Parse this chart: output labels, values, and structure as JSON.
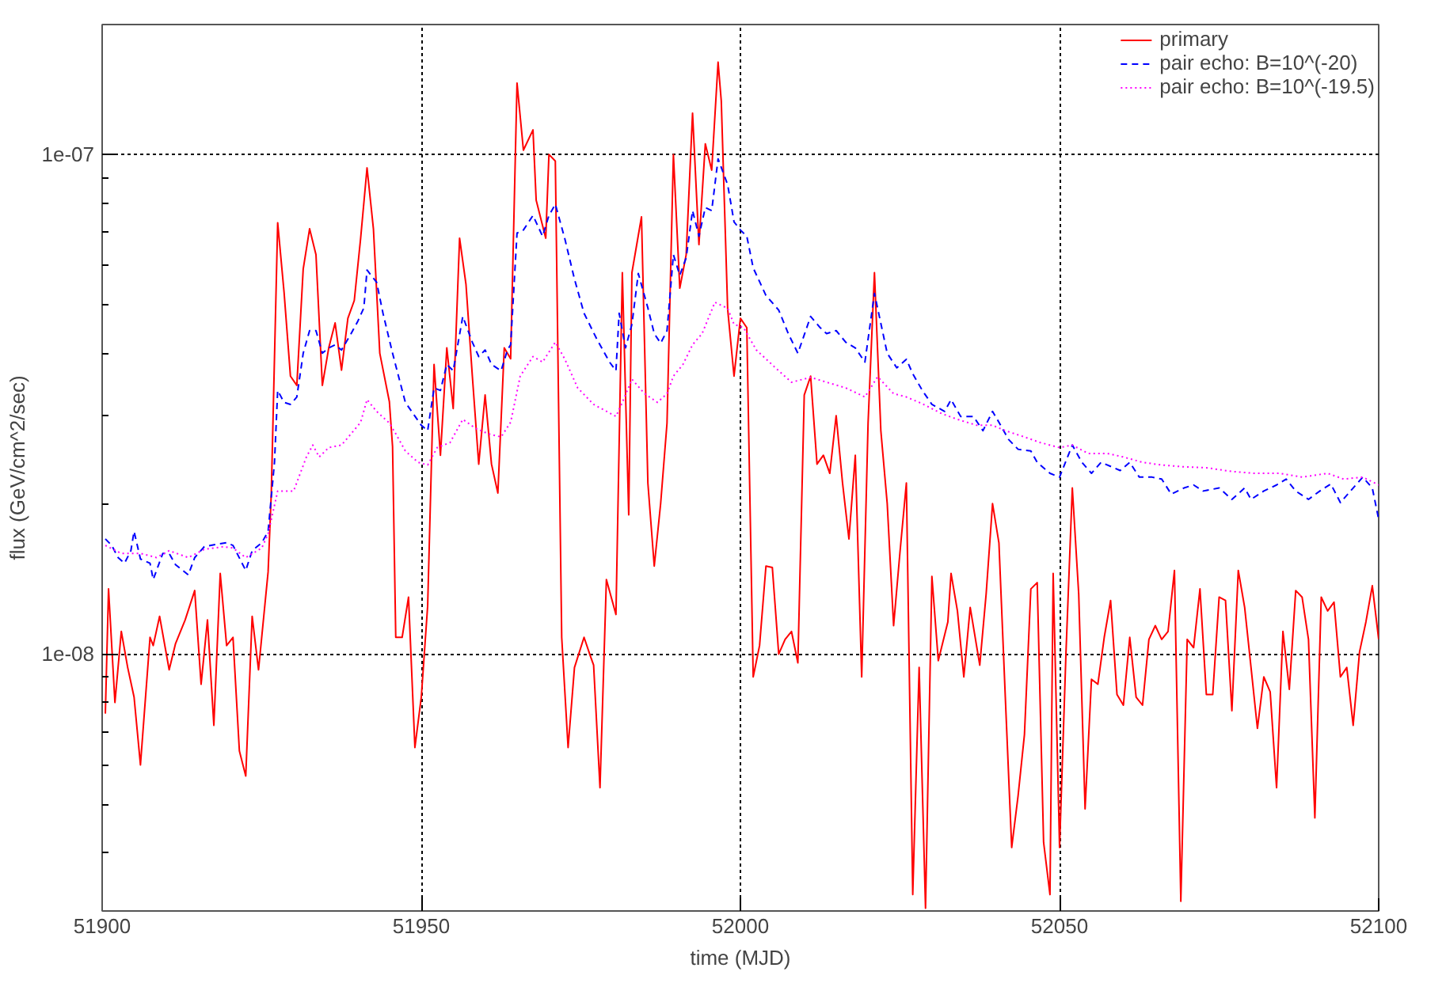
{
  "chart_data": {
    "type": "line",
    "xlabel": "time (MJD)",
    "ylabel": "flux (GeV/cm^2/sec)",
    "log": "y",
    "grid": true,
    "legend": "top right",
    "marker": "none",
    "xlim": [
      51900,
      52100
    ],
    "xticks": [
      51900,
      51950,
      52000,
      52050,
      52100
    ],
    "ylim": [
      3.06e-09,
      1.82e-07
    ],
    "yticks": [
      {
        "value": 4e-09,
        "label": null
      },
      {
        "value": 5e-09,
        "label": null
      },
      {
        "value": 6e-09,
        "label": null
      },
      {
        "value": 7e-09,
        "label": null
      },
      {
        "value": 8e-09,
        "label": null
      },
      {
        "value": 9e-09,
        "label": null
      },
      {
        "value": 1e-08,
        "label": "1e-08"
      },
      {
        "value": 2e-08,
        "label": null
      },
      {
        "value": 3e-08,
        "label": null
      },
      {
        "value": 4e-08,
        "label": null
      },
      {
        "value": 5e-08,
        "label": null
      },
      {
        "value": 6e-08,
        "label": null
      },
      {
        "value": 7e-08,
        "label": null
      },
      {
        "value": 8e-08,
        "label": null
      },
      {
        "value": 9e-08,
        "label": null
      },
      {
        "value": 1e-07,
        "label": "1e-07"
      }
    ],
    "series": [
      {
        "name": "primary",
        "color": "#ff0000",
        "line_style": "solid",
        "x": [
          51900.5,
          51901,
          51902,
          51903,
          51904,
          51905,
          51906,
          51907.5,
          51908,
          51909,
          51910.5,
          51911.5,
          51913,
          51914.5,
          51915.5,
          51916.5,
          51917.5,
          51918.5,
          51919.5,
          51920.5,
          51921.5,
          51922.5,
          51923.5,
          51924.5,
          51926,
          51926.5,
          51927.5,
          51928.5,
          51929.5,
          51930.5,
          51931.5,
          51932.5,
          51933.5,
          51934.5,
          51935.5,
          51936.5,
          51937.5,
          51938.5,
          51939.5,
          51940.5,
          51941.5,
          51942.5,
          51943.5,
          51945,
          51945.5,
          51946,
          51947,
          51948,
          51949,
          51950,
          51951,
          51952,
          51953,
          51954,
          51955,
          51956,
          51957,
          51958,
          51959,
          51960,
          51961,
          51962,
          51963,
          51964,
          51965,
          51966,
          51967.5,
          51968,
          51969.5,
          51970,
          51971,
          51972,
          51973,
          51974,
          51975.5,
          51976.5,
          51977,
          51978,
          51979,
          51980.5,
          51981.5,
          51982.5,
          51983,
          51984.5,
          51985.5,
          51986.5,
          51987.5,
          51988.5,
          51989.5,
          51990.5,
          51991.5,
          51992.5,
          51993.5,
          51994.5,
          51995.5,
          51996.5,
          51997,
          51998,
          51999,
          52000,
          52001,
          52002,
          52003,
          52004,
          52005,
          52006,
          52007,
          52008,
          52009,
          52010,
          52011,
          52012,
          52013,
          52014,
          52015,
          52016,
          52017,
          52018,
          52019,
          52020,
          52021,
          52022,
          52023,
          52024,
          52025,
          52026,
          52027,
          52028,
          52029,
          52030,
          52031,
          52032.5,
          52033,
          52034,
          52035,
          52036,
          52037.5,
          52038.5,
          52039.5,
          52040.5,
          52041.5,
          52042.5,
          52043.5,
          52044.5,
          52045.5,
          52046.5,
          52047.5,
          52048.5,
          52049,
          52050,
          52051,
          52052,
          52053,
          52054,
          52055,
          52056,
          52057,
          52058,
          52059,
          52060,
          52061,
          52062,
          52063,
          52064,
          52065,
          52066,
          52067,
          52068,
          52069,
          52070,
          52071,
          52072,
          52073,
          52074,
          52075,
          52076,
          52077,
          52078,
          52079,
          52080,
          52081,
          52082,
          52083,
          52084,
          52085,
          52086,
          52087,
          52088,
          52089,
          52090,
          52091,
          52092,
          52093,
          52094,
          52095,
          52096,
          52097,
          52098,
          52099,
          52100
        ],
        "values": [
          7.6e-09,
          1.35e-08,
          8e-09,
          1.11e-08,
          9.4e-09,
          8.2e-09,
          6e-09,
          1.08e-08,
          1.04e-08,
          1.19e-08,
          9.3e-09,
          1.05e-08,
          1.17e-08,
          1.34e-08,
          8.7e-09,
          1.17e-08,
          7.2e-09,
          1.45e-08,
          1.04e-08,
          1.08e-08,
          6.4e-09,
          5.7e-09,
          1.19e-08,
          9.3e-09,
          1.46e-08,
          2.1e-08,
          7.3e-08,
          5.3e-08,
          3.6e-08,
          3.45e-08,
          5.9e-08,
          7.1e-08,
          6.3e-08,
          3.45e-08,
          4.1e-08,
          4.6e-08,
          3.7e-08,
          4.7e-08,
          5.1e-08,
          6.8e-08,
          9.4e-08,
          7.1e-08,
          4e-08,
          3.2e-08,
          2.6e-08,
          1.08e-08,
          1.08e-08,
          1.3e-08,
          6.5e-09,
          8.2e-09,
          1.25e-08,
          3.8e-08,
          2.5e-08,
          4.1e-08,
          3.1e-08,
          6.8e-08,
          5.5e-08,
          3.6e-08,
          2.4e-08,
          3.3e-08,
          2.4e-08,
          2.1e-08,
          4.1e-08,
          3.9e-08,
          1.39e-07,
          1.02e-07,
          1.12e-07,
          8.1e-08,
          6.8e-08,
          1e-07,
          9.7e-08,
          1.08e-08,
          6.5e-09,
          9.4e-09,
          1.08e-08,
          9.9e-09,
          9.5e-09,
          5.4e-09,
          1.41e-08,
          1.2e-08,
          5.8e-08,
          1.9e-08,
          5.8e-08,
          7.5e-08,
          2.2e-08,
          1.5e-08,
          2e-08,
          2.9e-08,
          1e-07,
          5.4e-08,
          6.3e-08,
          1.21e-07,
          6.6e-08,
          1.05e-07,
          9.3e-08,
          1.53e-07,
          1.28e-07,
          4.9e-08,
          3.6e-08,
          4.7e-08,
          4.5e-08,
          9e-09,
          1.04e-08,
          1.5e-08,
          1.49e-08,
          1e-08,
          1.07e-08,
          1.11e-08,
          9.6e-09,
          3.3e-08,
          3.6e-08,
          2.4e-08,
          2.5e-08,
          2.3e-08,
          3e-08,
          2.2e-08,
          1.7e-08,
          2.5e-08,
          9e-09,
          2.9e-08,
          5.8e-08,
          2.8e-08,
          2e-08,
          1.14e-08,
          1.6e-08,
          2.2e-08,
          3.3e-09,
          9.4e-09,
          3.1e-09,
          1.43e-08,
          9.7e-09,
          1.16e-08,
          1.45e-08,
          1.22e-08,
          9e-09,
          1.24e-08,
          9.5e-09,
          1.32e-08,
          2e-08,
          1.67e-08,
          8.2e-09,
          4.1e-09,
          5.2e-09,
          6.9e-09,
          1.35e-08,
          1.39e-08,
          4.2e-09,
          3.3e-09,
          1.45e-08,
          4.1e-09,
          1e-08,
          2.15e-08,
          1.32e-08,
          4.9e-09,
          8.9e-09,
          8.7e-09,
          1.08e-08,
          1.28e-08,
          8.3e-09,
          7.9e-09,
          1.08e-08,
          8.2e-09,
          7.9e-09,
          1.07e-08,
          1.14e-08,
          1.07e-08,
          1.11e-08,
          1.47e-08,
          3.2e-09,
          1.07e-08,
          1.03e-08,
          1.35e-08,
          8.3e-09,
          8.3e-09,
          1.3e-08,
          1.28e-08,
          7.7e-09,
          1.47e-08,
          1.24e-08,
          9.4e-09,
          7.1e-09,
          9e-09,
          8.4e-09,
          5.4e-09,
          1.11e-08,
          8.5e-09,
          1.34e-08,
          1.3e-08,
          1.07e-08,
          4.7e-09,
          1.3e-08,
          1.22e-08,
          1.27e-08,
          9e-09,
          9.4e-09,
          7.2e-09,
          1.01e-08,
          1.16e-08,
          1.37e-08,
          1.07e-08
        ]
      },
      {
        "name": "pair echo: B=10^(-20)",
        "color": "#0000ff",
        "line_style": "dashed",
        "x": [
          51900.5,
          51901.5,
          51902.5,
          51903.5,
          51904.5,
          51905,
          51906,
          51907.5,
          51908,
          51909.5,
          51910.5,
          51911.5,
          51913.5,
          51914.5,
          51916,
          51918,
          51919.5,
          51920.5,
          51922.5,
          51923.5,
          51925,
          51926,
          51927,
          51927.5,
          51928.5,
          51929.5,
          51930.5,
          51931.5,
          51932.5,
          51933.5,
          51934.5,
          51935.5,
          51936.5,
          51937.5,
          51939,
          51940,
          51941,
          51941.5,
          51943,
          51944,
          51945.5,
          51947.5,
          51950,
          51951,
          51952,
          51953,
          51954,
          51955,
          51956.5,
          51958,
          51959,
          51960,
          51961,
          51962.5,
          51963.5,
          51964,
          51965,
          51966,
          51967.5,
          51969,
          51970,
          51971,
          51972.5,
          51974,
          51975.5,
          51977.5,
          51979.5,
          51980.5,
          51981,
          51982,
          51983,
          51984,
          51985.5,
          51986.5,
          51987.5,
          51988.5,
          51989.5,
          51990.5,
          51991.5,
          51992.5,
          51993.5,
          51994.5,
          51995.5,
          51996.5,
          51998,
          51999,
          52000,
          52001,
          52002,
          52004,
          52006,
          52007.5,
          52009,
          52011,
          52012.5,
          52013.5,
          52015,
          52016.5,
          52018,
          52019.5,
          52021,
          52023,
          52024.5,
          52026,
          52027,
          52028.5,
          52030,
          52032,
          52033,
          52034.5,
          52036.5,
          52038,
          52039.5,
          52040.5,
          52042,
          52043.5,
          52045.5,
          52046.5,
          52048.5,
          52050,
          52052,
          52053.5,
          52055,
          52056.5,
          52058.5,
          52059.5,
          52061,
          52062.5,
          52064.5,
          52066,
          52067.5,
          52069.5,
          52071,
          52072.5,
          52075,
          52077,
          52079,
          52080,
          52082,
          52084,
          52085.5,
          52087,
          52089,
          52091,
          52092.5,
          52094,
          52096,
          52097.5,
          52099,
          52100
        ],
        "values": [
          1.7e-08,
          1.65e-08,
          1.56e-08,
          1.52e-08,
          1.61e-08,
          1.76e-08,
          1.55e-08,
          1.52e-08,
          1.41e-08,
          1.59e-08,
          1.59e-08,
          1.51e-08,
          1.44e-08,
          1.56e-08,
          1.64e-08,
          1.66e-08,
          1.67e-08,
          1.65e-08,
          1.47e-08,
          1.61e-08,
          1.67e-08,
          1.76e-08,
          2.42e-08,
          3.37e-08,
          3.19e-08,
          3.16e-08,
          3.27e-08,
          4e-08,
          4.44e-08,
          4.44e-08,
          4e-08,
          4.1e-08,
          4.16e-08,
          4.06e-08,
          4.38e-08,
          4.62e-08,
          4.93e-08,
          5.87e-08,
          5.55e-08,
          4.81e-08,
          4e-08,
          3.19e-08,
          2.87e-08,
          2.8e-08,
          3.41e-08,
          3.37e-08,
          3.8e-08,
          3.69e-08,
          4.74e-08,
          4.21e-08,
          3.94e-08,
          4.06e-08,
          3.8e-08,
          3.69e-08,
          4.06e-08,
          4.16e-08,
          6.96e-08,
          7.06e-08,
          7.55e-08,
          6.86e-08,
          7.55e-08,
          7.95e-08,
          6.77e-08,
          5.63e-08,
          4.81e-08,
          4.27e-08,
          3.84e-08,
          3.69e-08,
          4.81e-08,
          4.1e-08,
          4.57e-08,
          5.78e-08,
          4.93e-08,
          4.38e-08,
          4.19e-08,
          4.44e-08,
          6.3e-08,
          5.73e-08,
          6.21e-08,
          7.72e-08,
          6.86e-08,
          7.83e-08,
          7.72e-08,
          9.8e-08,
          8.7e-08,
          7.33e-08,
          7.06e-08,
          6.86e-08,
          5.93e-08,
          5.22e-08,
          4.88e-08,
          4.38e-08,
          4e-08,
          4.74e-08,
          4.5e-08,
          4.38e-08,
          4.44e-08,
          4.21e-08,
          4.1e-08,
          3.84e-08,
          5.27e-08,
          4e-08,
          3.74e-08,
          3.89e-08,
          3.64e-08,
          3.37e-08,
          3.16e-08,
          3.06e-08,
          3.23e-08,
          2.99e-08,
          2.99e-08,
          2.8e-08,
          3.06e-08,
          2.91e-08,
          2.69e-08,
          2.57e-08,
          2.55e-08,
          2.42e-08,
          2.3e-08,
          2.26e-08,
          2.62e-08,
          2.42e-08,
          2.3e-08,
          2.42e-08,
          2.36e-08,
          2.33e-08,
          2.42e-08,
          2.26e-08,
          2.26e-08,
          2.24e-08,
          2.09e-08,
          2.15e-08,
          2.18e-08,
          2.12e-08,
          2.15e-08,
          2.04e-08,
          2.15e-08,
          2.04e-08,
          2.12e-08,
          2.18e-08,
          2.24e-08,
          2.12e-08,
          2.04e-08,
          2.13e-08,
          2.19e-08,
          2.01e-08,
          2.15e-08,
          2.26e-08,
          2.15e-08,
          1.86e-08
        ]
      },
      {
        "name": "pair echo: B=10^(-19.5)",
        "color": "#ff00ff",
        "line_style": "dotted",
        "x": [
          51900.5,
          51903,
          51906,
          51908.5,
          51910.5,
          51913.5,
          51916,
          51919,
          51920.5,
          51922.5,
          51925,
          51926,
          51927.5,
          51929,
          51930,
          51932,
          51933,
          51934,
          51935.5,
          51937.5,
          51939,
          51940.5,
          51941.5,
          51943,
          51945,
          51946,
          51947.5,
          51949.5,
          51951,
          51952.5,
          51954.5,
          51956.5,
          51958.5,
          51960.5,
          51962.5,
          51964,
          51965.5,
          51967.5,
          51969,
          51971,
          51972.5,
          51974.5,
          51977,
          51980.5,
          51981.5,
          51983,
          51985,
          51987,
          51988.5,
          51989.5,
          51991,
          51992.5,
          51994,
          51996,
          51998,
          51999,
          52000.5,
          52002.5,
          52005.5,
          52008,
          52011,
          52013.5,
          52016.5,
          52019.5,
          52021.5,
          52024,
          52026,
          52028.5,
          52031.5,
          52034,
          52037,
          52039.5,
          52041.5,
          52044.5,
          52047,
          52050,
          52052,
          52054.5,
          52057.5,
          52060,
          52063,
          52066,
          52069.5,
          52073,
          52077,
          52080.5,
          52084.5,
          52088,
          52092,
          52094.5,
          52097.5,
          52100
        ],
        "values": [
          1.65e-08,
          1.59e-08,
          1.59e-08,
          1.56e-08,
          1.61e-08,
          1.56e-08,
          1.62e-08,
          1.64e-08,
          1.63e-08,
          1.56e-08,
          1.63e-08,
          1.74e-08,
          2.12e-08,
          2.12e-08,
          2.12e-08,
          2.48e-08,
          2.62e-08,
          2.48e-08,
          2.59e-08,
          2.62e-08,
          2.76e-08,
          2.91e-08,
          3.23e-08,
          3.06e-08,
          2.9e-08,
          2.76e-08,
          2.55e-08,
          2.42e-08,
          2.39e-08,
          2.59e-08,
          2.65e-08,
          2.95e-08,
          2.83e-08,
          2.76e-08,
          2.72e-08,
          2.91e-08,
          3.6e-08,
          3.94e-08,
          3.84e-08,
          4.21e-08,
          3.89e-08,
          3.41e-08,
          3.16e-08,
          2.99e-08,
          3.19e-08,
          3.55e-08,
          3.32e-08,
          3.19e-08,
          3.32e-08,
          3.6e-08,
          3.8e-08,
          4.16e-08,
          4.38e-08,
          5.06e-08,
          4.92e-08,
          4.57e-08,
          4.5e-08,
          4.06e-08,
          3.74e-08,
          3.5e-08,
          3.58e-08,
          3.5e-08,
          3.41e-08,
          3.27e-08,
          3.59e-08,
          3.32e-08,
          3.27e-08,
          3.17e-08,
          3.03e-08,
          2.95e-08,
          2.87e-08,
          2.87e-08,
          2.8e-08,
          2.72e-08,
          2.65e-08,
          2.59e-08,
          2.62e-08,
          2.52e-08,
          2.52e-08,
          2.48e-08,
          2.42e-08,
          2.39e-08,
          2.37e-08,
          2.36e-08,
          2.32e-08,
          2.3e-08,
          2.3e-08,
          2.26e-08,
          2.3e-08,
          2.24e-08,
          2.26e-08,
          2.18e-08
        ]
      }
    ]
  }
}
